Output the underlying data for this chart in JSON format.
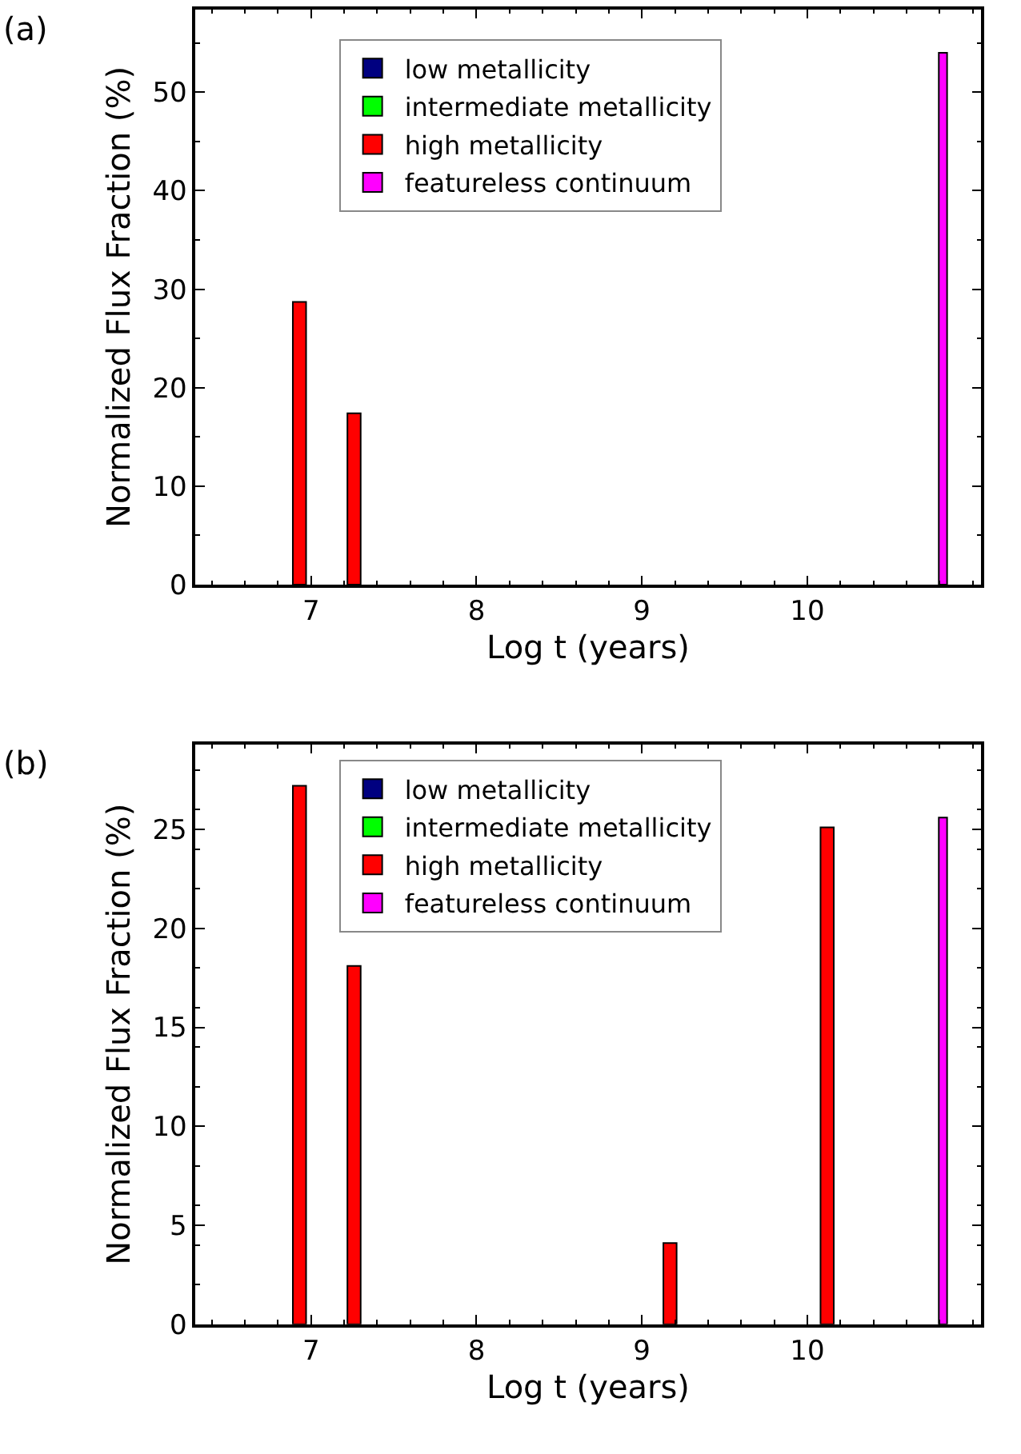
{
  "chart_data": [
    {
      "type": "bar",
      "xlabel": "Log t (years)",
      "ylabel": "Normalized Flux Fraction (%)",
      "annotations": [
        "(a)"
      ],
      "xlim": [
        6.3,
        11.05
      ],
      "xticks": [
        7,
        8,
        9,
        10
      ],
      "ylim": [
        0,
        58.4
      ],
      "yticks": [
        0,
        10,
        20,
        30,
        40,
        50
      ],
      "legend": "top",
      "series": [
        {
          "name": "low metallicity",
          "color": "#000080"
        },
        {
          "name": "intermediate metallicity",
          "color": "#00ff00"
        },
        {
          "name": "high metallicity",
          "color": "#ff0000",
          "x": [
            6.93,
            7.26
          ],
          "values": [
            28.7,
            17.4
          ]
        },
        {
          "name": "featureless continuum",
          "color": "#ff00ff",
          "x": [
            10.82
          ],
          "values": [
            54.0
          ]
        }
      ]
    },
    {
      "type": "bar",
      "xlabel": "Log t (years)",
      "ylabel": "Normalized Flux Fraction (%)",
      "annotations": [
        "(b)"
      ],
      "xlim": [
        6.3,
        11.05
      ],
      "xticks": [
        7,
        8,
        9,
        10
      ],
      "ylim": [
        0,
        29.3
      ],
      "yticks": [
        0,
        5,
        10,
        15,
        20,
        25
      ],
      "legend": "top",
      "series": [
        {
          "name": "low metallicity",
          "color": "#000080"
        },
        {
          "name": "intermediate metallicity",
          "color": "#00ff00"
        },
        {
          "name": "high metallicity",
          "color": "#ff0000",
          "x": [
            6.93,
            7.26,
            9.17,
            10.12
          ],
          "values": [
            27.2,
            18.1,
            4.1,
            25.1
          ]
        },
        {
          "name": "featureless continuum",
          "color": "#ff00ff",
          "x": [
            10.82
          ],
          "values": [
            25.6
          ]
        }
      ]
    }
  ]
}
